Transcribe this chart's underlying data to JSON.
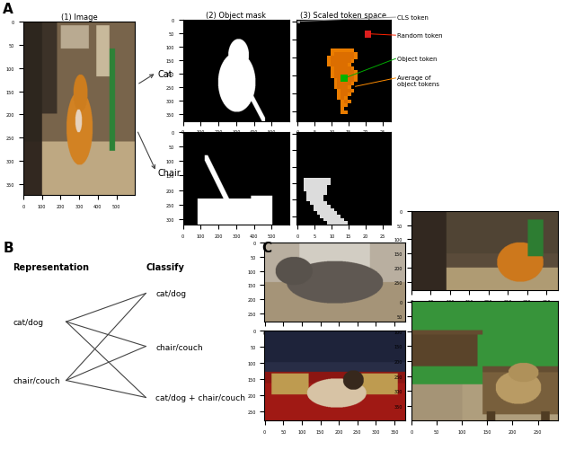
{
  "fig_width": 6.4,
  "fig_height": 5.02,
  "bg_color": "#ffffff",
  "panel_A_label": "A",
  "panel_B_label": "B",
  "panel_C_label": "C",
  "section1_title": "(1) Image",
  "section2_title": "(2) Object mask",
  "section3_title": "(3) Scaled token space",
  "cat_label": "Cat",
  "chair_label": "Chair",
  "cls_token_label": "CLS token",
  "random_token_label": "Random token",
  "object_token_label": "Object token",
  "avg_token_label": "Average of\nobject tokens",
  "rep_label": "Representation",
  "classify_label": "Classify",
  "cat_dog_left": "cat/dog",
  "chair_couch_left": "chair/couch",
  "cat_dog_right": "cat/dog",
  "chair_couch_right": "chair/couch",
  "combined_right": "cat/dog + chair/couch",
  "orange_color": "#FF8C00",
  "red_color": "#FF2200",
  "green_color": "#00AA00",
  "gray_color": "#999999",
  "line_color": "#444444"
}
